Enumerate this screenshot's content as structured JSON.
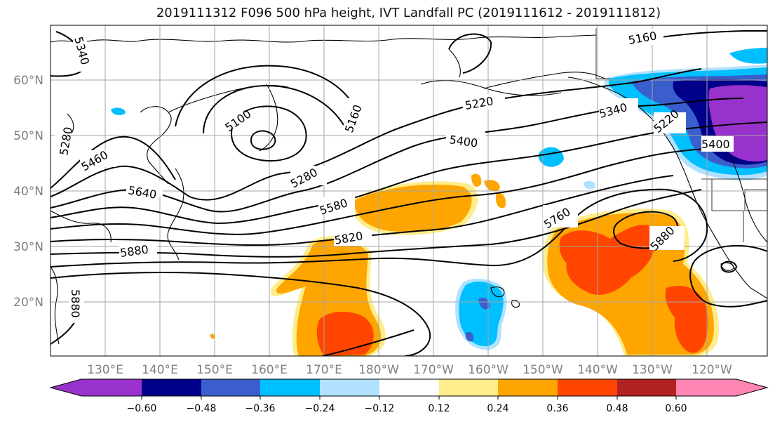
{
  "title": "2019111312 F096 500 hPa height, IVT Landfall PC (2019111612 - 2019111812)",
  "lat_labels": [
    "60°N",
    "50°N",
    "40°N",
    "30°N",
    "20°N"
  ],
  "lon_labels": [
    "130°E",
    "140°E",
    "150°E",
    "160°E",
    "170°E",
    "180°W",
    "170°W",
    "160°W",
    "150°W",
    "140°W",
    "130°W",
    "120°W"
  ],
  "contour_labels": [
    "5340",
    "5160",
    "5100",
    "5160",
    "5220",
    "5340",
    "5280",
    "5460",
    "5640",
    "5400",
    "5280",
    "5580",
    "5820",
    "5760",
    "5880",
    "5880",
    "5880",
    "5220",
    "5400"
  ],
  "colorbar": {
    "tick_labels": [
      "−0.60",
      "−0.48",
      "−0.36",
      "−0.24",
      "−0.12",
      "0.12",
      "0.24",
      "0.36",
      "0.48",
      "0.60"
    ],
    "colors": [
      "#9932cc",
      "#00008b",
      "#3a5fcd",
      "#00bfff",
      "#b0e2ff",
      "#ffffff",
      "#ffec8b",
      "#ffa500",
      "#ff4500",
      "#b22222",
      "#ff86b4"
    ]
  }
}
